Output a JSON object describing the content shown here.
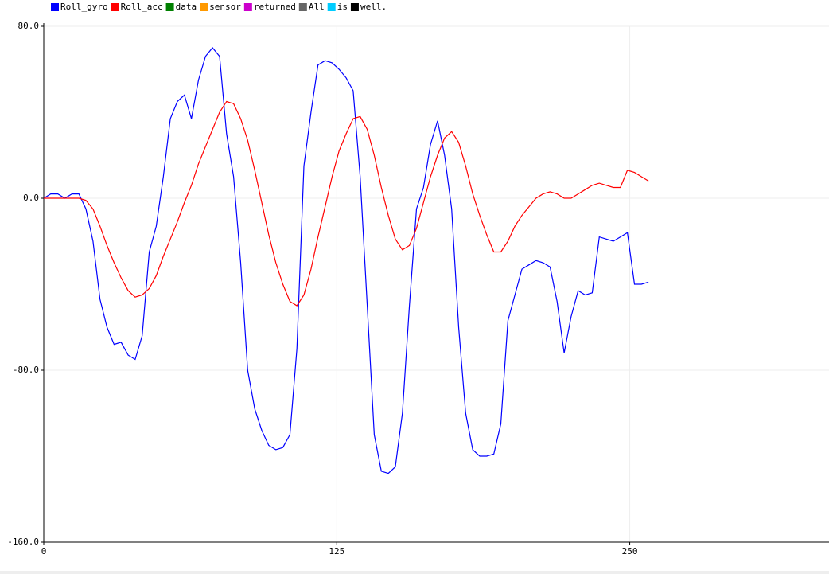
{
  "chart_data": {
    "type": "line",
    "x": [
      0,
      3,
      6,
      9,
      12,
      15,
      18,
      21,
      24,
      27,
      30,
      33,
      36,
      39,
      42,
      45,
      48,
      51,
      54,
      57,
      60,
      63,
      66,
      69,
      72,
      75,
      78,
      81,
      84,
      87,
      90,
      93,
      96,
      99,
      102,
      105,
      108,
      111,
      114,
      117,
      120,
      123,
      126,
      129,
      132,
      135,
      138,
      141,
      144,
      147,
      150,
      153,
      156,
      159,
      162,
      165,
      168,
      171,
      174,
      177,
      180,
      183,
      186,
      189,
      192,
      195,
      198,
      201,
      204,
      207,
      210,
      213,
      216,
      219,
      222,
      225,
      228,
      231,
      234,
      237,
      240,
      243,
      246,
      249,
      252,
      255,
      258
    ],
    "series": [
      {
        "name": "Roll_gyro",
        "color": "#0000ff",
        "values": [
          0,
          2,
          2,
          0,
          2,
          2,
          -5,
          -20,
          -47,
          -60,
          -68,
          -67,
          -73,
          -75,
          -64,
          -25,
          -13,
          10,
          37,
          45,
          48,
          37,
          55,
          66,
          70,
          66,
          30,
          10,
          -30,
          -80,
          -98,
          -108,
          -115,
          -117,
          -116,
          -110,
          -70,
          15,
          40,
          62,
          64,
          63,
          60,
          56,
          50,
          10,
          -50,
          -110,
          -127,
          -128,
          -125,
          -100,
          -50,
          -5,
          5,
          25,
          36,
          20,
          -5,
          -60,
          -100,
          -117,
          -120,
          -120,
          -119,
          -105,
          -57,
          -45,
          -33,
          -31,
          -29,
          -30,
          -32,
          -48,
          -72,
          -55,
          -43,
          -45,
          -44,
          -18,
          -19,
          -20,
          -18,
          -16,
          -40,
          -40,
          -39
        ]
      },
      {
        "name": "Roll_acc",
        "color": "#ff0000",
        "values": [
          0,
          0,
          0,
          0,
          0,
          0,
          -1,
          -5,
          -13,
          -22,
          -30,
          -37,
          -43,
          -46,
          -45,
          -42,
          -36,
          -27,
          -19,
          -11,
          -2,
          6,
          16,
          24,
          32,
          40,
          45,
          44,
          37,
          27,
          13,
          -2,
          -17,
          -30,
          -40,
          -48,
          -50,
          -45,
          -33,
          -18,
          -4,
          10,
          22,
          30,
          37,
          38,
          32,
          20,
          5,
          -8,
          -19,
          -24,
          -22,
          -14,
          -2,
          10,
          20,
          28,
          31,
          26,
          15,
          2,
          -8,
          -17,
          -25,
          -25,
          -20,
          -13,
          -8,
          -4,
          0,
          2,
          3,
          2,
          0,
          0,
          2,
          4,
          6,
          7,
          6,
          5,
          5,
          13,
          12,
          10,
          8
        ]
      },
      {
        "name": "data",
        "color": "#008000"
      },
      {
        "name": "sensor",
        "color": "#ff9900"
      },
      {
        "name": "returned",
        "color": "#cc00cc"
      },
      {
        "name": "All",
        "color": "#666666"
      },
      {
        "name": "is",
        "color": "#00ccff"
      },
      {
        "name": "well.",
        "color": "#000000"
      }
    ],
    "xlim": [
      0,
      335
    ],
    "xticks": [
      0,
      125,
      250
    ],
    "ylim": [
      -160,
      80
    ],
    "yticks": [
      {
        "value": 80,
        "label": "80.0"
      },
      {
        "value": 0,
        "label": "0.0"
      },
      {
        "value": -80,
        "label": "-80.0"
      },
      {
        "value": -160,
        "label": "-160.0"
      }
    ],
    "grid": true
  }
}
